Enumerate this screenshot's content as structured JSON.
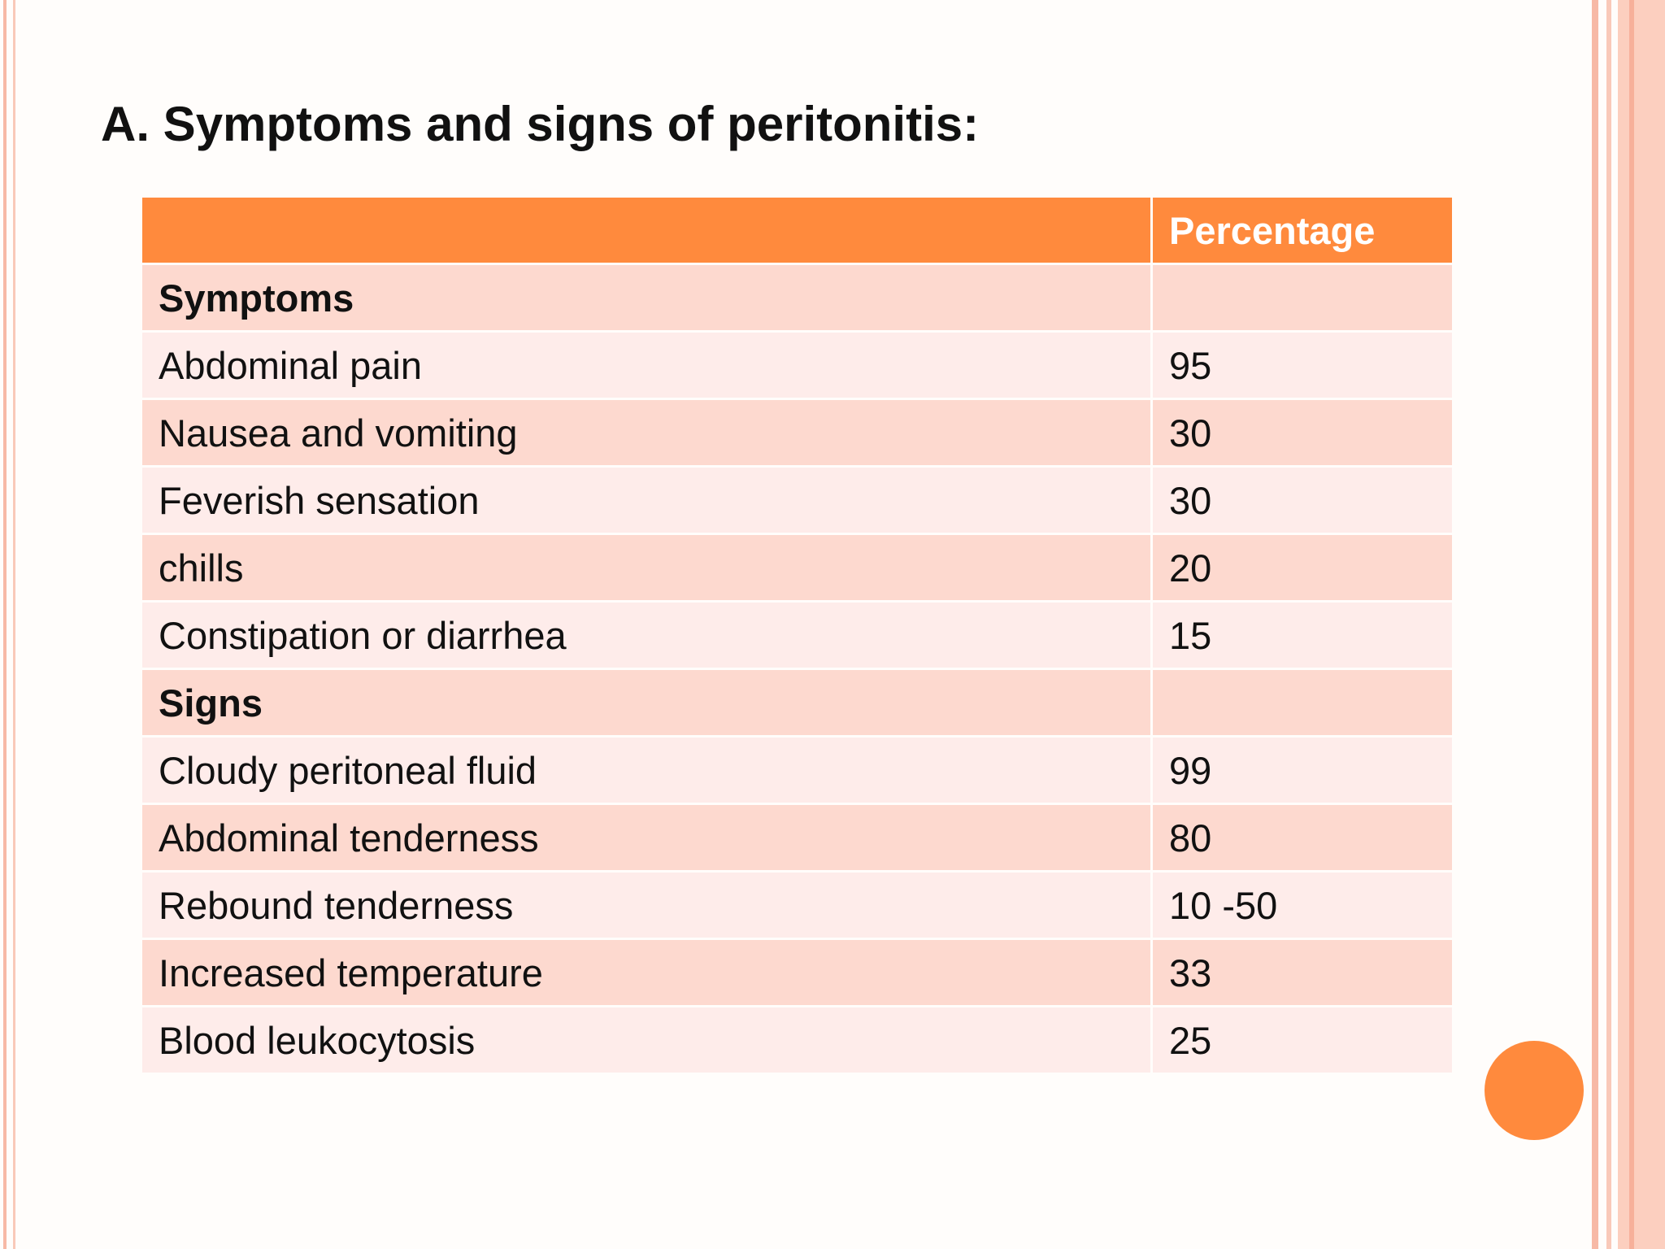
{
  "header": {
    "title": "A. Symptoms and signs of peritonitis:"
  },
  "table": {
    "column_header": "Percentage",
    "sections": [
      {
        "title": "Symptoms",
        "rows": [
          [
            "Abdominal pain",
            95
          ],
          [
            "Nausea and vomiting",
            30
          ],
          [
            "Feverish sensation",
            30
          ],
          [
            "chills",
            20
          ],
          [
            "Constipation or diarrhea",
            15
          ]
        ]
      },
      {
        "title": "Signs",
        "rows": [
          [
            "Cloudy peritoneal fluid",
            99
          ],
          [
            "Abdominal tenderness",
            80
          ],
          [
            "Rebound tenderness",
            "10 -50"
          ],
          [
            "Increased temperature",
            33
          ],
          [
            "Blood leukocytosis",
            25
          ]
        ]
      }
    ]
  }
}
